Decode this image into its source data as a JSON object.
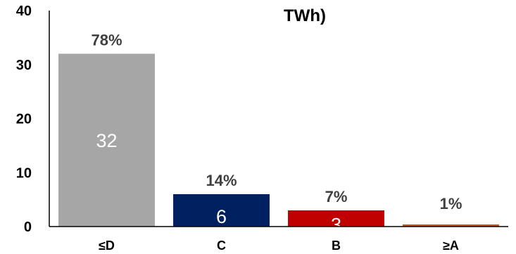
{
  "chart_data": {
    "type": "bar",
    "title": "TWh)",
    "categories": [
      "≤D",
      "C",
      "B",
      "≥A"
    ],
    "values": [
      32,
      6,
      3,
      0.4
    ],
    "value_labels": [
      "32",
      "6",
      "3",
      ""
    ],
    "percent_labels": [
      "78%",
      "14%",
      "7%",
      "1%"
    ],
    "colors": [
      "#a6a6a6",
      "#002060",
      "#c00000",
      "#c55a11"
    ],
    "ylim": [
      0,
      40
    ],
    "yticks": [
      "0",
      "10",
      "20",
      "30",
      "40"
    ],
    "ytick_values": [
      0,
      10,
      20,
      30,
      40
    ],
    "grid": false,
    "legend": "none",
    "xlabel": "",
    "ylabel": ""
  }
}
